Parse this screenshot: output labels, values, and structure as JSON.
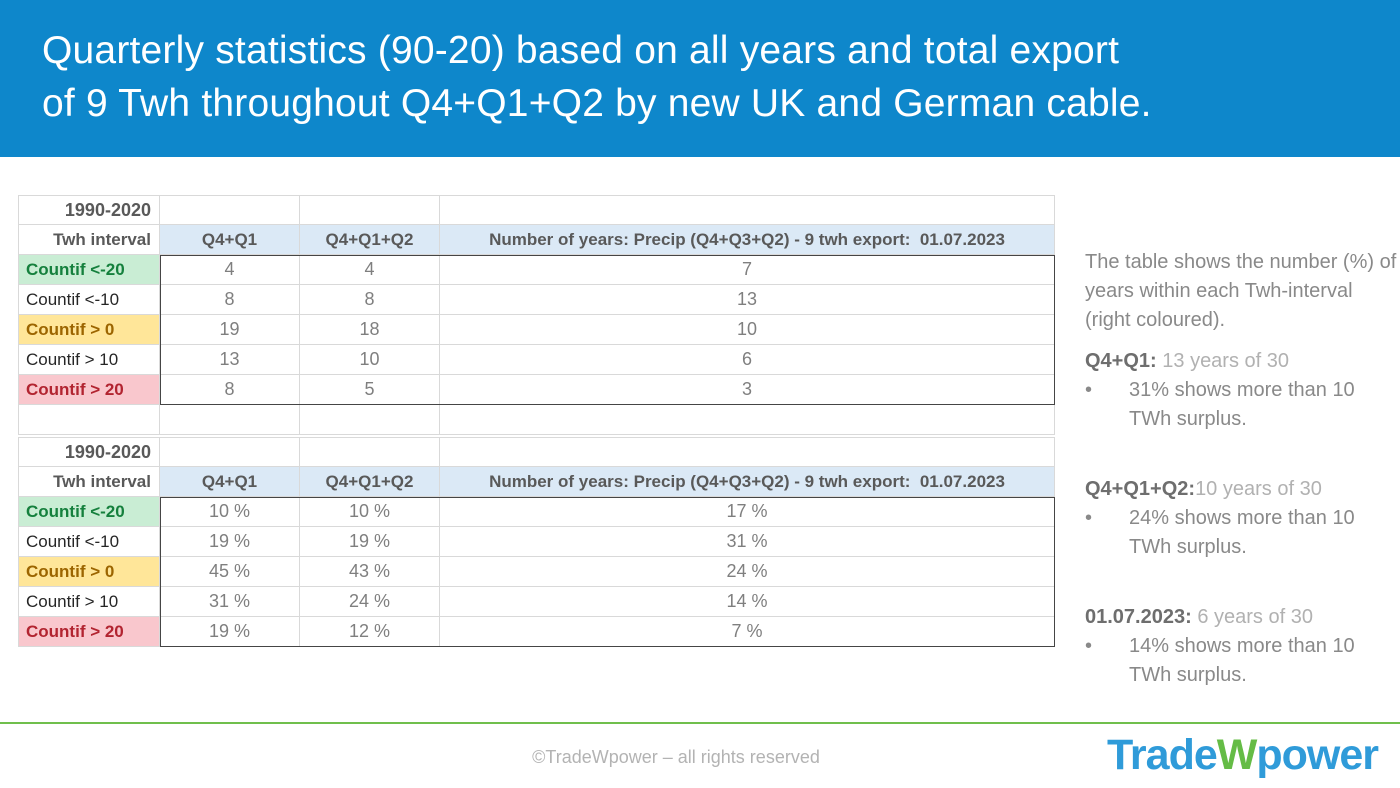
{
  "slide": {
    "title": "Quarterly statistics (90-20) based on all years and total export\nof 9 Twh throughout Q4+Q1+Q2 by new UK and German cable."
  },
  "tables": [
    {
      "period": "1990-2020",
      "columns": [
        "Twh interval",
        "Q4+Q1",
        "Q4+Q1+Q2",
        "Number of years: Precip (Q4+Q3+Q2) - 9 twh export:  01.07.2023"
      ],
      "rows": [
        {
          "label": "Countif <-20",
          "tone": "good",
          "values": [
            "4",
            "4",
            "7"
          ]
        },
        {
          "label": "Countif <-10",
          "tone": "plain",
          "values": [
            "8",
            "8",
            "13"
          ]
        },
        {
          "label": "Countif > 0",
          "tone": "neutral",
          "values": [
            "19",
            "18",
            "10"
          ]
        },
        {
          "label": "Countif > 10",
          "tone": "plain",
          "values": [
            "13",
            "10",
            "6"
          ]
        },
        {
          "label": "Countif > 20",
          "tone": "bad",
          "values": [
            "8",
            "5",
            "3"
          ]
        }
      ]
    },
    {
      "period": "1990-2020",
      "columns": [
        "Twh interval",
        "Q4+Q1",
        "Q4+Q1+Q2",
        "Number of years: Precip (Q4+Q3+Q2) - 9 twh export:  01.07.2023"
      ],
      "rows": [
        {
          "label": "Countif <-20",
          "tone": "good",
          "values": [
            "10 %",
            "10 %",
            "17 %"
          ]
        },
        {
          "label": "Countif <-10",
          "tone": "plain",
          "values": [
            "19 %",
            "19 %",
            "31 %"
          ]
        },
        {
          "label": "Countif > 0",
          "tone": "neutral",
          "values": [
            "45 %",
            "43 %",
            "24 %"
          ]
        },
        {
          "label": "Countif > 10",
          "tone": "plain",
          "values": [
            "31 %",
            "24 %",
            "14 %"
          ]
        },
        {
          "label": "Countif > 20",
          "tone": "bad",
          "values": [
            "19 %",
            "12 %",
            "7 %"
          ]
        }
      ]
    }
  ],
  "notes": {
    "intro": "The table shows the number (%) of years within each Twh-interval (right coloured).",
    "bullet_char": "•",
    "sections": [
      {
        "heading": "Q4+Q1:",
        "heading_suffix": " 13 years of 30",
        "bullet": "31% shows more than 10 TWh surplus."
      },
      {
        "heading": "Q4+Q1+Q2:",
        "heading_suffix": "10 years of 30",
        "bullet": "24% shows more than 10 TWh surplus."
      },
      {
        "heading": "01.07.2023:",
        "heading_suffix": " 6 years of 30",
        "bullet": "14% shows more than 10 TWh surplus."
      }
    ]
  },
  "footer": {
    "copyright": "©TradeWpower – all rights reserved",
    "logo": {
      "part1": "Trade",
      "part2": "W",
      "part3": "power"
    }
  },
  "colors": {
    "title_bar_blue": "#0E87CB",
    "table_header_blue": "#DBE9F6",
    "gridline_gray": "#D9D9D9",
    "good_bg": "#C9EDD4",
    "good_text": "#15803D",
    "neutral_bg": "#FFE699",
    "neutral_text": "#9C6500",
    "bad_bg": "#F9C7CD",
    "bad_text": "#B22430",
    "divider_green": "#70BF4C",
    "logo_blue": "#2F9BD9",
    "logo_green": "#65BC46"
  }
}
